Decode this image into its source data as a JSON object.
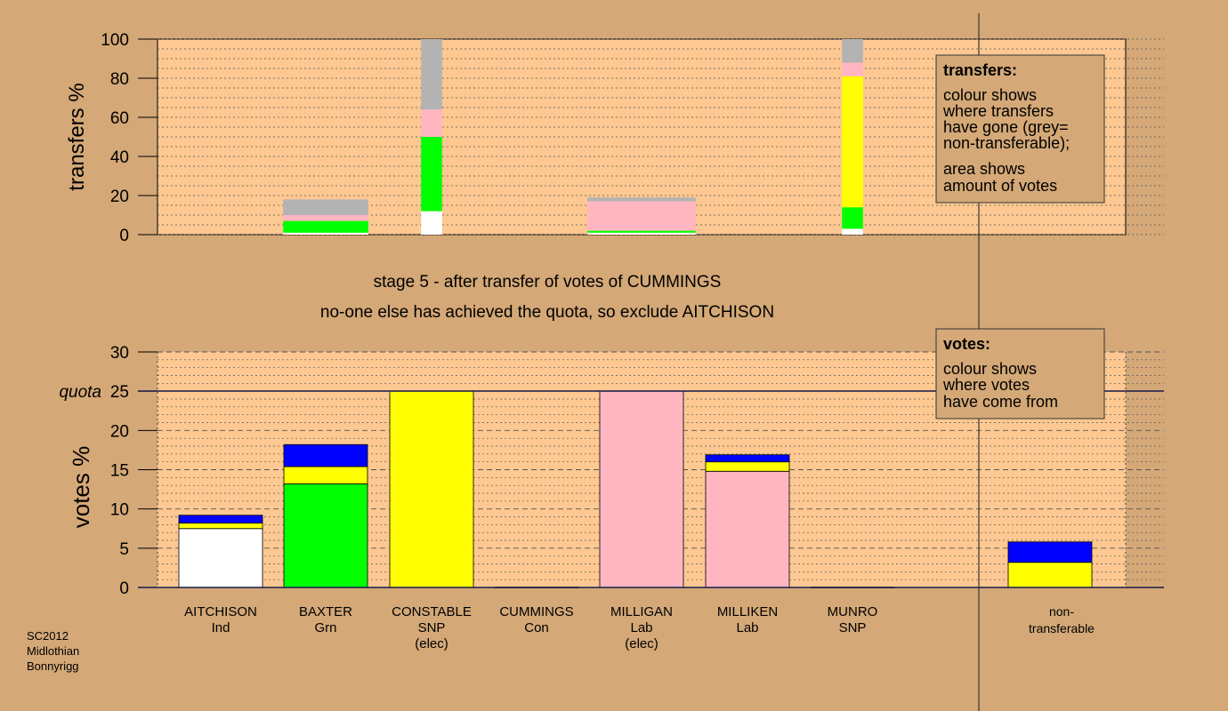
{
  "colors": {
    "background": "#d4a877",
    "plot_area": "#fdc891",
    "white": "#ffffff",
    "green": "#00ff00",
    "yellow": "#ffff00",
    "grey": "#b3b3b3",
    "pink": "#ffb6c1",
    "blue": "#0000ff"
  },
  "stage_title": "stage 5 - after transfer of votes of CUMMINGS",
  "stage_subtitle": "no-one else has achieved the quota, so exclude AITCHISON",
  "footer": [
    "SC2012",
    "Midlothian",
    "Bonnyrigg"
  ],
  "transfers_legend": {
    "heading": "transfers:",
    "lines1": [
      "colour shows",
      "where transfers",
      "have gone (grey=",
      "non-transferable);"
    ],
    "lines2": [
      "area shows",
      "amount of votes"
    ]
  },
  "votes_legend": {
    "heading": "votes:",
    "lines": [
      "colour shows",
      "where votes",
      "have come from"
    ]
  },
  "candidates": [
    {
      "name": "AITCHISON",
      "party": "Ind",
      "status": ""
    },
    {
      "name": "BAXTER",
      "party": "Grn",
      "status": ""
    },
    {
      "name": "CONSTABLE",
      "party": "SNP",
      "status": "(elec)"
    },
    {
      "name": "CUMMINGS",
      "party": "Con",
      "status": ""
    },
    {
      "name": "MILLIGAN",
      "party": "Lab",
      "status": "(elec)"
    },
    {
      "name": "MILLIKEN",
      "party": "Lab",
      "status": ""
    },
    {
      "name": "MUNRO",
      "party": "SNP",
      "status": ""
    }
  ],
  "nontransferable_label": [
    "non-",
    "transferable"
  ],
  "chart_data": [
    {
      "type": "bar",
      "stacked": true,
      "ylabel": "transfers %",
      "ylim": [
        0,
        100
      ],
      "yticks": [
        0,
        20,
        40,
        60,
        80,
        100
      ],
      "grid": "dotted",
      "bars": [
        {
          "candidate": "BAXTER",
          "width_pct": 8.1,
          "segments": [
            {
              "color": "white",
              "value": 1
            },
            {
              "color": "green",
              "value": 6
            },
            {
              "color": "pink",
              "value": 3
            },
            {
              "color": "grey",
              "value": 8
            }
          ]
        },
        {
          "candidate": "CONSTABLE",
          "width_pct": 2.0,
          "segments": [
            {
              "color": "white",
              "value": 12
            },
            {
              "color": "green",
              "value": 38
            },
            {
              "color": "pink",
              "value": 14
            },
            {
              "color": "grey",
              "value": 36
            }
          ]
        },
        {
          "candidate": "MILLIGAN",
          "width_pct": 10.3,
          "segments": [
            {
              "color": "white",
              "value": 1
            },
            {
              "color": "green",
              "value": 1
            },
            {
              "color": "pink",
              "value": 15
            },
            {
              "color": "grey",
              "value": 2
            }
          ]
        },
        {
          "candidate": "MUNRO",
          "width_pct": 2.0,
          "segments": [
            {
              "color": "white",
              "value": 3
            },
            {
              "color": "green",
              "value": 11
            },
            {
              "color": "yellow",
              "value": 67
            },
            {
              "color": "pink",
              "value": 7
            },
            {
              "color": "grey",
              "value": 12
            }
          ]
        }
      ]
    },
    {
      "type": "bar",
      "stacked": true,
      "ylabel": "votes %",
      "ylim": [
        0,
        30
      ],
      "yticks": [
        0,
        5,
        10,
        15,
        20,
        25,
        30
      ],
      "quota_label": "quota",
      "quota": 25,
      "grid": "dashed",
      "bars": [
        {
          "candidate": "AITCHISON",
          "segments": [
            {
              "color": "white",
              "value": 7.5
            },
            {
              "color": "yellow",
              "value": 0.7
            },
            {
              "color": "blue",
              "value": 1.0
            }
          ]
        },
        {
          "candidate": "BAXTER",
          "segments": [
            {
              "color": "green",
              "value": 13.2
            },
            {
              "color": "yellow",
              "value": 2.2
            },
            {
              "color": "blue",
              "value": 2.8
            }
          ]
        },
        {
          "candidate": "CONSTABLE",
          "segments": [
            {
              "color": "yellow",
              "value": 25.0
            }
          ]
        },
        {
          "candidate": "CUMMINGS",
          "segments": []
        },
        {
          "candidate": "MILLIGAN",
          "segments": [
            {
              "color": "pink",
              "value": 25.0
            }
          ]
        },
        {
          "candidate": "MILLIKEN",
          "segments": [
            {
              "color": "pink",
              "value": 14.8
            },
            {
              "color": "yellow",
              "value": 1.2
            },
            {
              "color": "blue",
              "value": 0.9
            }
          ]
        },
        {
          "candidate": "MUNRO",
          "segments": []
        },
        {
          "candidate": "non-transferable",
          "segments": [
            {
              "color": "yellow",
              "value": 3.2
            },
            {
              "color": "blue",
              "value": 2.6
            }
          ]
        }
      ]
    }
  ]
}
